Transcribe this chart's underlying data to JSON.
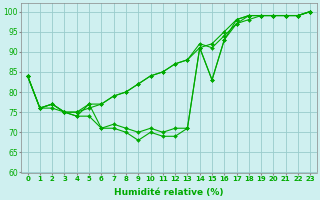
{
  "xlabel": "Humidité relative (%)",
  "bg_color": "#cff0f0",
  "grid_color": "#99cccc",
  "line_color": "#00aa00",
  "marker": "D",
  "markersize": 2.0,
  "linewidth": 0.8,
  "xlim": [
    -0.5,
    23.5
  ],
  "ylim": [
    60,
    102
  ],
  "yticks": [
    60,
    65,
    70,
    75,
    80,
    85,
    90,
    95,
    100
  ],
  "xticks": [
    0,
    1,
    2,
    3,
    4,
    5,
    6,
    7,
    8,
    9,
    10,
    11,
    12,
    13,
    14,
    15,
    16,
    17,
    18,
    19,
    20,
    21,
    22,
    23
  ],
  "series": [
    [
      84,
      76,
      77,
      75,
      75,
      77,
      77,
      79,
      80,
      82,
      84,
      85,
      87,
      88,
      91,
      92,
      95,
      98,
      99,
      99,
      99,
      99,
      99,
      100
    ],
    [
      84,
      76,
      77,
      75,
      75,
      76,
      77,
      79,
      80,
      82,
      84,
      85,
      87,
      88,
      92,
      91,
      94,
      97,
      98,
      99,
      99,
      99,
      99,
      100
    ],
    [
      84,
      76,
      77,
      75,
      74,
      77,
      71,
      72,
      71,
      70,
      71,
      70,
      71,
      71,
      91,
      83,
      93,
      98,
      99,
      99,
      99,
      99,
      99,
      100
    ],
    [
      84,
      76,
      76,
      75,
      74,
      74,
      71,
      71,
      70,
      68,
      70,
      69,
      69,
      71,
      91,
      83,
      93,
      97,
      99,
      99,
      99,
      99,
      99,
      100
    ]
  ]
}
